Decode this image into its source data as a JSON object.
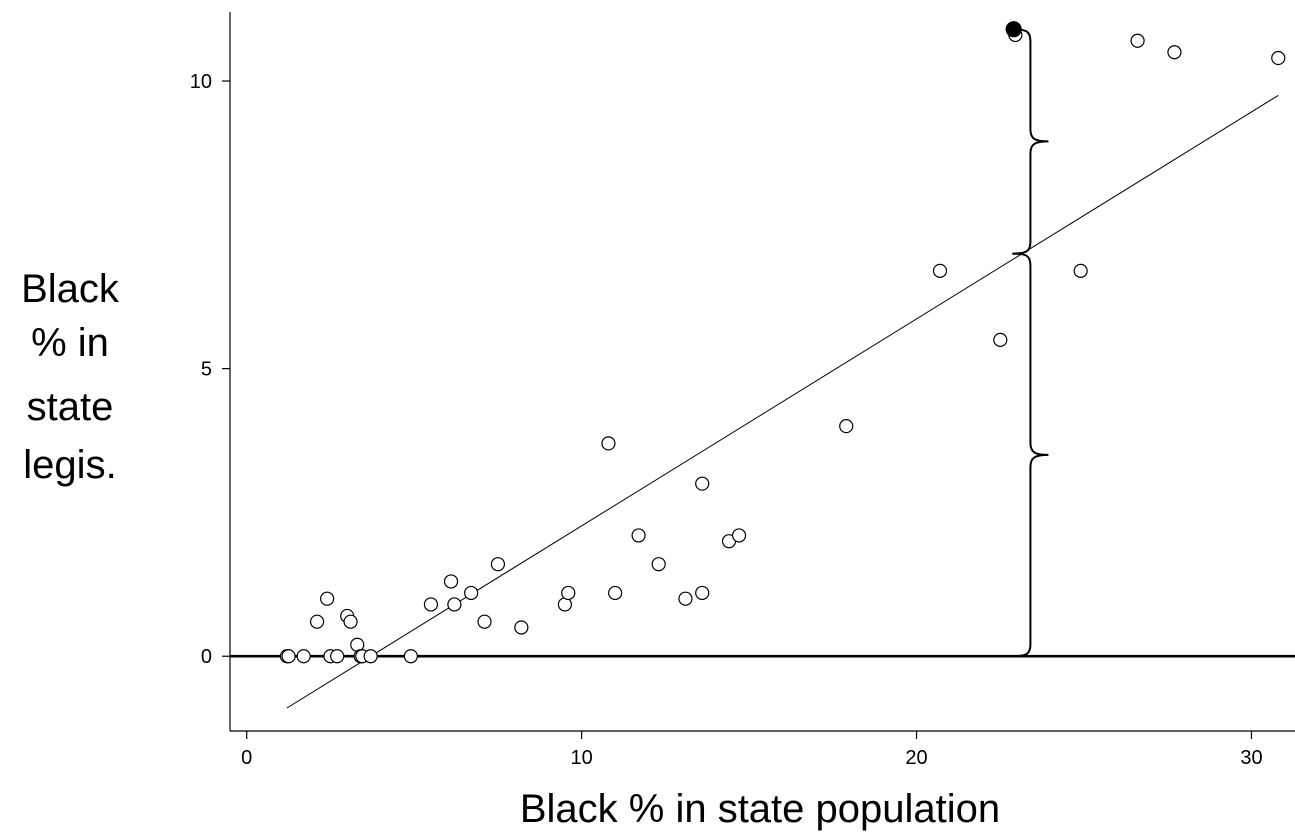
{
  "chart_data": {
    "type": "scatter",
    "xlabel": "Black % in state population",
    "ylabel_lines": [
      "Black",
      "% in",
      "state",
      "legis."
    ],
    "xlim": [
      -0.5,
      31.3
    ],
    "ylim": [
      -1.3,
      11.2
    ],
    "xticks": [
      0,
      10,
      20,
      30
    ],
    "yticks": [
      0,
      5,
      10
    ],
    "grid": false,
    "reference_line_y": 0,
    "fit_line": {
      "x": [
        1.2,
        30.8
      ],
      "y": [
        -0.9,
        9.75
      ]
    },
    "highlight_point": {
      "x": 22.9,
      "y": 10.9
    },
    "brace_x": 23.4,
    "brace_segments": [
      [
        10.9,
        7.0
      ],
      [
        7.0,
        0
      ]
    ],
    "points": [
      [
        1.2,
        0
      ],
      [
        1.25,
        0
      ],
      [
        1.7,
        0
      ],
      [
        2.1,
        0.6
      ],
      [
        2.4,
        1.0
      ],
      [
        2.5,
        0
      ],
      [
        2.7,
        0
      ],
      [
        3.0,
        0.7
      ],
      [
        3.1,
        0.6
      ],
      [
        3.3,
        0.2
      ],
      [
        3.4,
        0
      ],
      [
        3.45,
        0
      ],
      [
        3.7,
        0
      ],
      [
        4.9,
        0
      ],
      [
        5.5,
        0.9
      ],
      [
        6.1,
        1.3
      ],
      [
        6.2,
        0.9
      ],
      [
        6.7,
        1.1
      ],
      [
        7.1,
        0.6
      ],
      [
        7.5,
        1.6
      ],
      [
        8.2,
        0.5
      ],
      [
        9.5,
        0.9
      ],
      [
        9.6,
        1.1
      ],
      [
        10.8,
        3.7
      ],
      [
        11.0,
        1.1
      ],
      [
        11.7,
        2.1
      ],
      [
        12.3,
        1.6
      ],
      [
        13.1,
        1.0
      ],
      [
        13.6,
        1.1
      ],
      [
        13.6,
        3.0
      ],
      [
        14.4,
        2.0
      ],
      [
        14.7,
        2.1
      ],
      [
        17.9,
        4.0
      ],
      [
        20.7,
        6.7
      ],
      [
        22.5,
        5.5
      ],
      [
        22.95,
        10.8
      ],
      [
        24.9,
        6.7
      ],
      [
        26.6,
        10.7
      ],
      [
        27.7,
        10.5
      ],
      [
        30.8,
        10.4
      ]
    ]
  }
}
